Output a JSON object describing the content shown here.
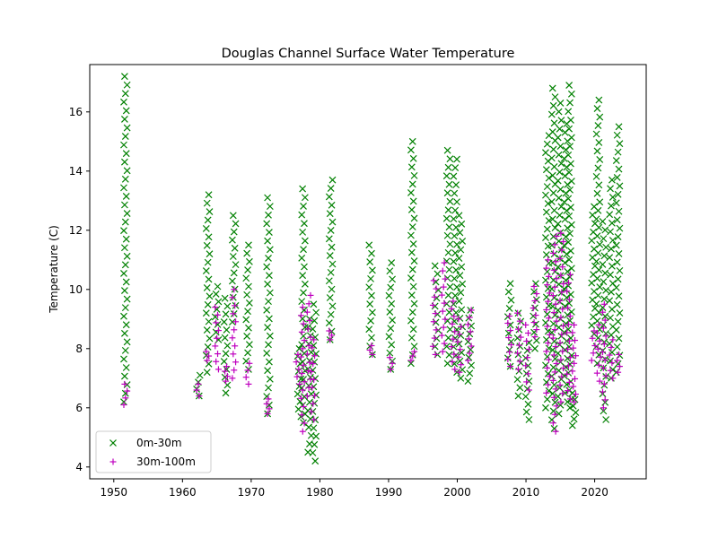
{
  "chart_data": {
    "type": "scatter",
    "title": "Douglas Channel Surface Water Temperature",
    "xlabel": "",
    "ylabel": "Temperature (C)",
    "xlim": [
      1946.5,
      2027.5
    ],
    "ylim": [
      3.6,
      17.6
    ],
    "xticks": [
      1950,
      1960,
      1970,
      1980,
      1990,
      2000,
      2010,
      2020
    ],
    "yticks": [
      4,
      6,
      8,
      10,
      12,
      14,
      16
    ],
    "grid": false,
    "legend_position": "lower-left",
    "series": [
      {
        "name": "0m-30m",
        "marker": "x",
        "color": "#008000",
        "clusters": [
          {
            "x": 1951.7,
            "ymin": 6.2,
            "ymax": 17.2
          },
          {
            "x": 1962.3,
            "ymin": 6.4,
            "ymax": 7.1
          },
          {
            "x": 1963.7,
            "ymin": 7.2,
            "ymax": 13.2
          },
          {
            "x": 1965.0,
            "ymin": 8.3,
            "ymax": 10.1
          },
          {
            "x": 1966.3,
            "ymin": 6.5,
            "ymax": 9.7
          },
          {
            "x": 1967.5,
            "ymin": 8.9,
            "ymax": 12.5
          },
          {
            "x": 1969.5,
            "ymin": 7.3,
            "ymax": 11.5
          },
          {
            "x": 1972.5,
            "ymin": 5.8,
            "ymax": 13.1
          },
          {
            "x": 1977.0,
            "ymin": 5.7,
            "ymax": 8.0
          },
          {
            "x": 1977.6,
            "ymin": 5.5,
            "ymax": 13.4
          },
          {
            "x": 1978.5,
            "ymin": 4.5,
            "ymax": 9.0
          },
          {
            "x": 1979.2,
            "ymin": 4.2,
            "ymax": 9.5
          },
          {
            "x": 1981.6,
            "ymin": 8.3,
            "ymax": 13.7
          },
          {
            "x": 1987.4,
            "ymin": 7.8,
            "ymax": 11.5
          },
          {
            "x": 1990.3,
            "ymin": 7.3,
            "ymax": 10.9
          },
          {
            "x": 1993.5,
            "ymin": 7.5,
            "ymax": 15.0
          },
          {
            "x": 1997.0,
            "ymin": 7.8,
            "ymax": 10.8
          },
          {
            "x": 1998.7,
            "ymin": 7.5,
            "ymax": 14.7
          },
          {
            "x": 1999.7,
            "ymin": 7.2,
            "ymax": 14.4
          },
          {
            "x": 2000.5,
            "ymin": 7.0,
            "ymax": 12.5
          },
          {
            "x": 2001.8,
            "ymin": 6.9,
            "ymax": 9.3
          },
          {
            "x": 2007.6,
            "ymin": 7.4,
            "ymax": 10.2
          },
          {
            "x": 2009.0,
            "ymin": 6.4,
            "ymax": 9.2
          },
          {
            "x": 2010.2,
            "ymin": 5.6,
            "ymax": 8.2
          },
          {
            "x": 2011.3,
            "ymin": 8.0,
            "ymax": 10.2
          },
          {
            "x": 2013.1,
            "ymin": 6.0,
            "ymax": 15.2
          },
          {
            "x": 2014.0,
            "ymin": 5.3,
            "ymax": 16.8
          },
          {
            "x": 2014.9,
            "ymin": 5.8,
            "ymax": 16.3
          },
          {
            "x": 2015.8,
            "ymin": 6.2,
            "ymax": 15.6
          },
          {
            "x": 2016.4,
            "ymin": 6.0,
            "ymax": 16.9
          },
          {
            "x": 2017.0,
            "ymin": 5.4,
            "ymax": 6.5
          },
          {
            "x": 2019.8,
            "ymin": 8.5,
            "ymax": 12.8
          },
          {
            "x": 2020.5,
            "ymin": 7.5,
            "ymax": 16.4
          },
          {
            "x": 2021.4,
            "ymin": 5.6,
            "ymax": 12.3
          },
          {
            "x": 2022.4,
            "ymin": 7.0,
            "ymax": 13.7
          },
          {
            "x": 2023.4,
            "ymin": 7.2,
            "ymax": 15.5
          }
        ]
      },
      {
        "name": "30m-100m",
        "marker": "+",
        "color": "#bf00bf",
        "clusters": [
          {
            "x": 1951.7,
            "ymin": 6.1,
            "ymax": 6.8
          },
          {
            "x": 1962.3,
            "ymin": 6.4,
            "ymax": 6.8
          },
          {
            "x": 1963.7,
            "ymin": 7.6,
            "ymax": 7.9
          },
          {
            "x": 1965.0,
            "ymin": 7.3,
            "ymax": 9.4
          },
          {
            "x": 1966.3,
            "ymin": 6.9,
            "ymax": 7.4
          },
          {
            "x": 1967.5,
            "ymin": 7.0,
            "ymax": 10.0
          },
          {
            "x": 1969.5,
            "ymin": 6.8,
            "ymax": 7.5
          },
          {
            "x": 1972.5,
            "ymin": 5.8,
            "ymax": 6.3
          },
          {
            "x": 1976.8,
            "ymin": 6.8,
            "ymax": 7.8
          },
          {
            "x": 1977.5,
            "ymin": 5.2,
            "ymax": 9.4
          },
          {
            "x": 1978.4,
            "ymin": 6.4,
            "ymax": 9.8
          },
          {
            "x": 1979.0,
            "ymin": 5.6,
            "ymax": 8.3
          },
          {
            "x": 1981.6,
            "ymin": 8.3,
            "ymax": 8.6
          },
          {
            "x": 1987.4,
            "ymin": 7.8,
            "ymax": 8.1
          },
          {
            "x": 1990.3,
            "ymin": 7.3,
            "ymax": 7.7
          },
          {
            "x": 1993.5,
            "ymin": 7.6,
            "ymax": 7.9
          },
          {
            "x": 1996.7,
            "ymin": 7.8,
            "ymax": 10.3
          },
          {
            "x": 1998.0,
            "ymin": 7.9,
            "ymax": 10.9
          },
          {
            "x": 1999.4,
            "ymin": 7.3,
            "ymax": 9.6
          },
          {
            "x": 2000.3,
            "ymin": 7.2,
            "ymax": 9.0
          },
          {
            "x": 2001.8,
            "ymin": 7.6,
            "ymax": 9.3
          },
          {
            "x": 2007.6,
            "ymin": 7.4,
            "ymax": 9.1
          },
          {
            "x": 2009.0,
            "ymin": 7.3,
            "ymax": 9.2
          },
          {
            "x": 2010.2,
            "ymin": 6.6,
            "ymax": 8.8
          },
          {
            "x": 2011.3,
            "ymin": 8.4,
            "ymax": 10.1
          },
          {
            "x": 2013.2,
            "ymin": 6.5,
            "ymax": 11.0
          },
          {
            "x": 2014.2,
            "ymin": 5.2,
            "ymax": 11.8
          },
          {
            "x": 2015.2,
            "ymin": 6.2,
            "ymax": 11.9
          },
          {
            "x": 2016.2,
            "ymin": 6.3,
            "ymax": 10.5
          },
          {
            "x": 2017.0,
            "ymin": 6.2,
            "ymax": 8.8
          },
          {
            "x": 2019.8,
            "ymin": 7.6,
            "ymax": 8.6
          },
          {
            "x": 2020.6,
            "ymin": 6.9,
            "ymax": 8.8
          },
          {
            "x": 2021.4,
            "ymin": 6.0,
            "ymax": 9.5
          },
          {
            "x": 2022.4,
            "ymin": 7.0,
            "ymax": 8.3
          },
          {
            "x": 2023.4,
            "ymin": 7.2,
            "ymax": 7.8
          }
        ]
      }
    ]
  }
}
